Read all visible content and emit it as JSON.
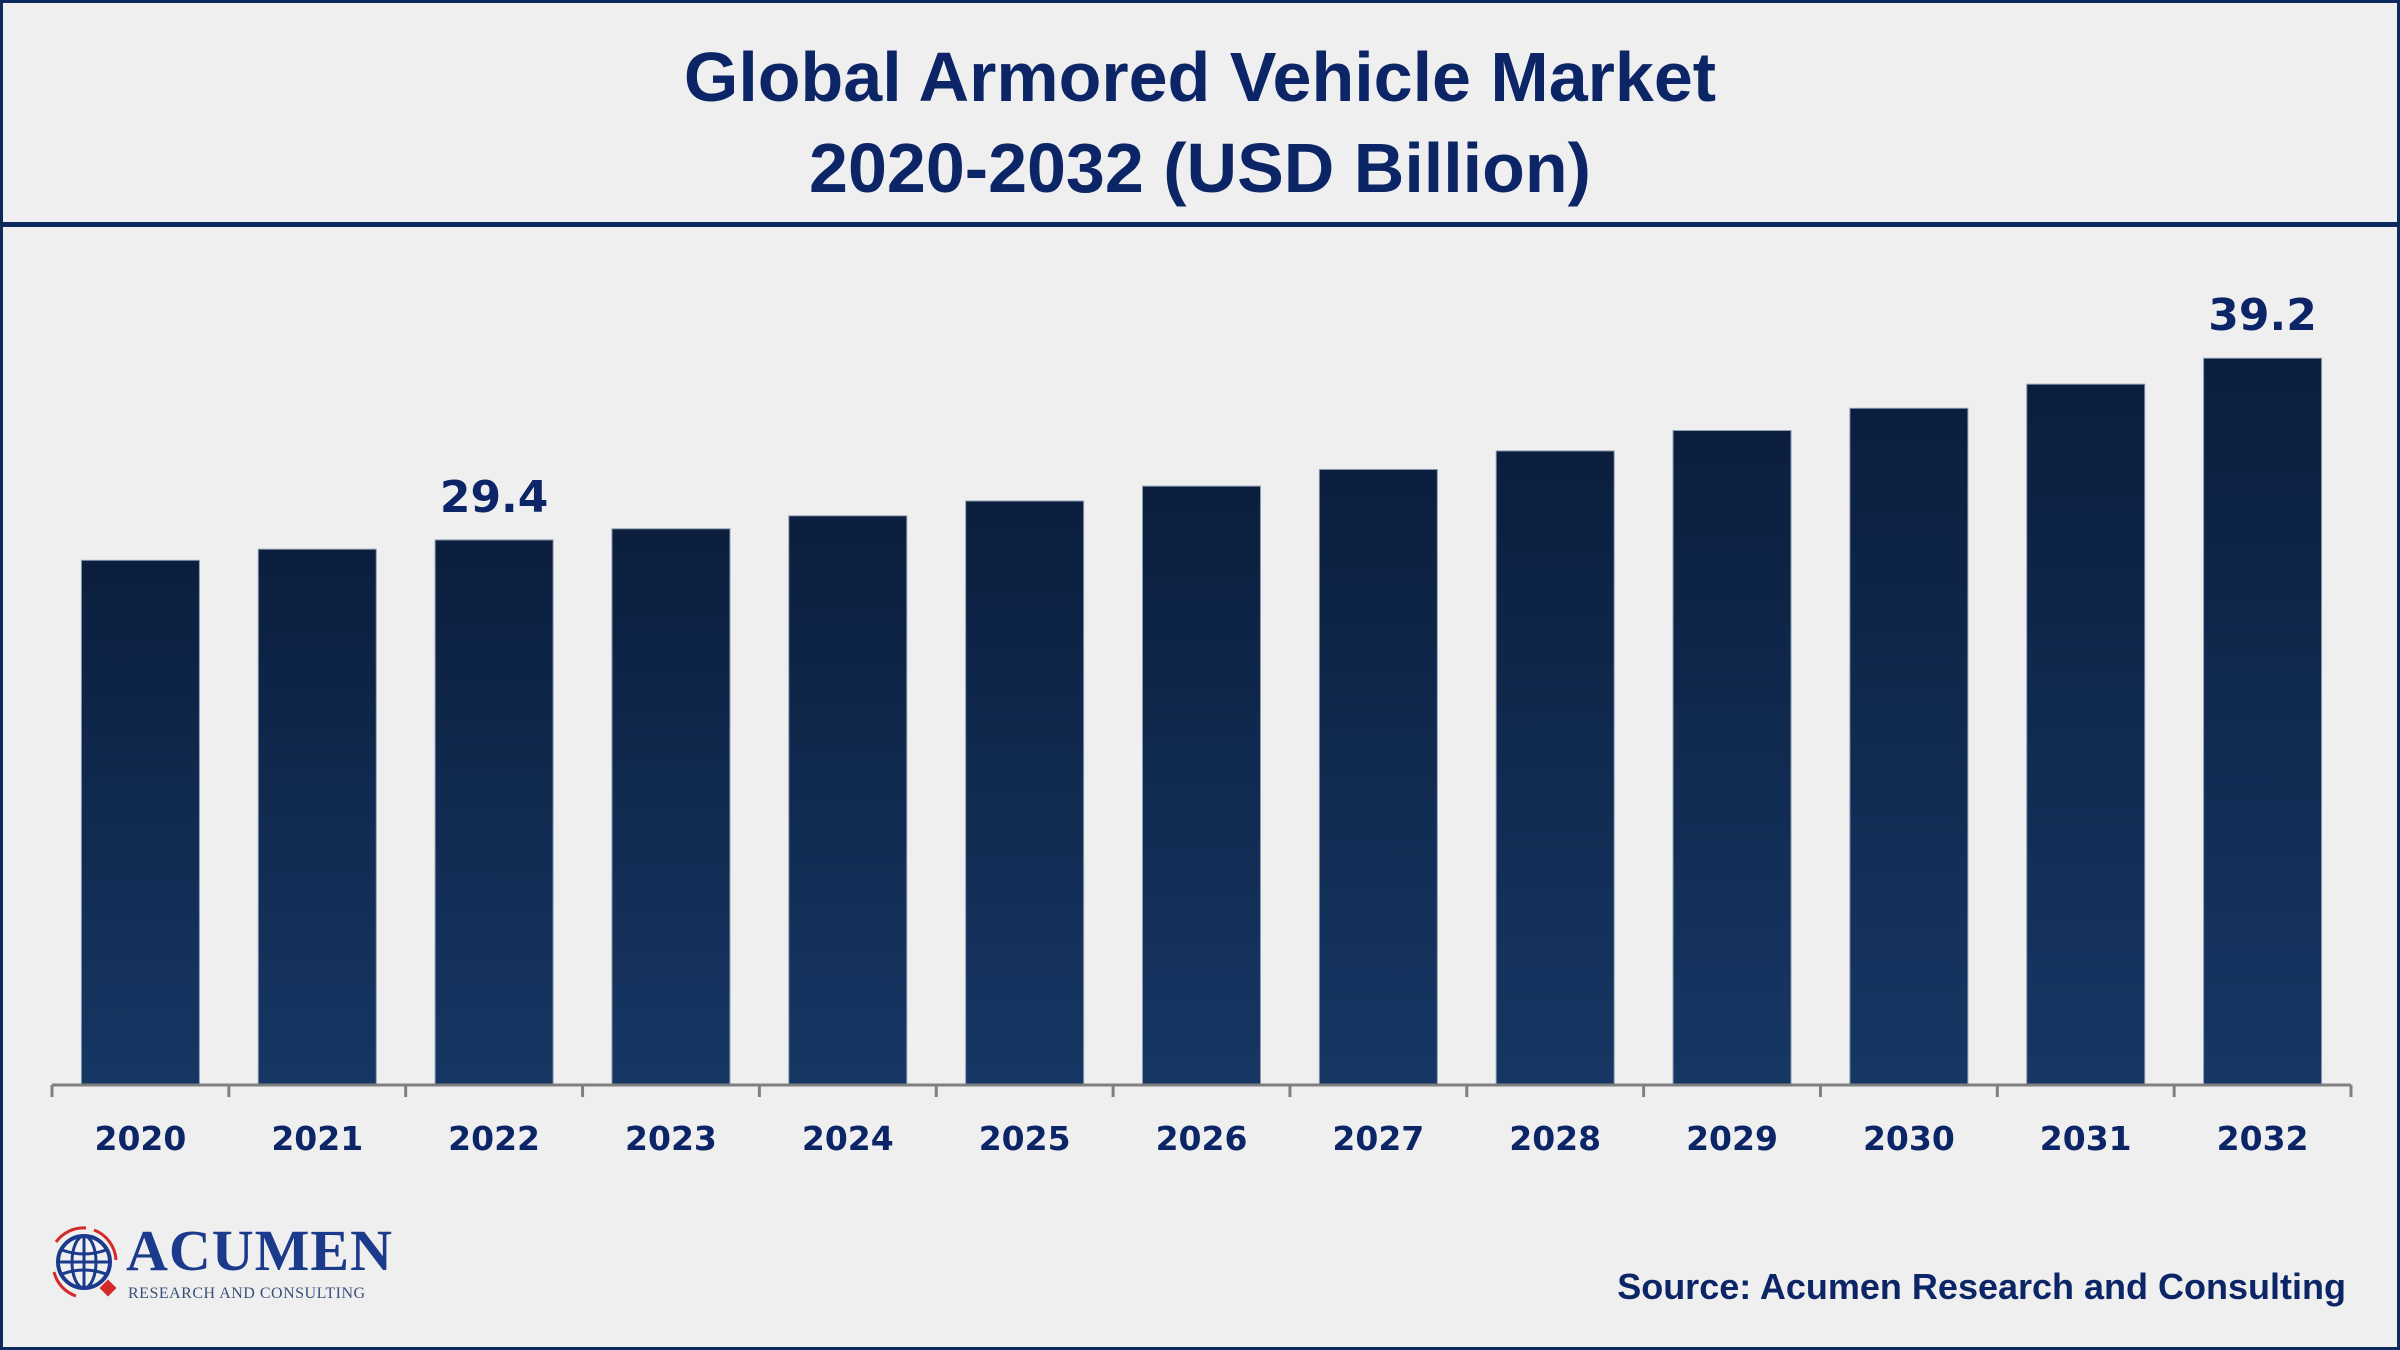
{
  "chart_data": {
    "type": "bar",
    "title": "Global Armored Vehicle Market",
    "subtitle": "2020-2032 (USD Billion)",
    "categories": [
      "2020",
      "2021",
      "2022",
      "2023",
      "2024",
      "2025",
      "2026",
      "2027",
      "2028",
      "2029",
      "2030",
      "2031",
      "2032"
    ],
    "values": [
      28.3,
      28.9,
      29.4,
      30.0,
      30.7,
      31.5,
      32.3,
      33.2,
      34.2,
      35.3,
      36.5,
      37.8,
      39.2
    ],
    "data_labels": [
      {
        "category": "2022",
        "text": "29.4"
      },
      {
        "category": "2032",
        "text": "39.2"
      }
    ],
    "xlabel": "",
    "ylabel": "",
    "ylim": [
      0,
      45
    ],
    "grid": false,
    "bar_color_top": "#0b1e3d",
    "bar_color_bottom": "#163764"
  },
  "source": "Source: Acumen Research and Consulting",
  "logo": {
    "name": "ACUMEN",
    "tagline": "RESEARCH AND CONSULTING"
  },
  "colors": {
    "title": "#0b2566",
    "border": "#0d2a5c",
    "background": "#efefef"
  }
}
